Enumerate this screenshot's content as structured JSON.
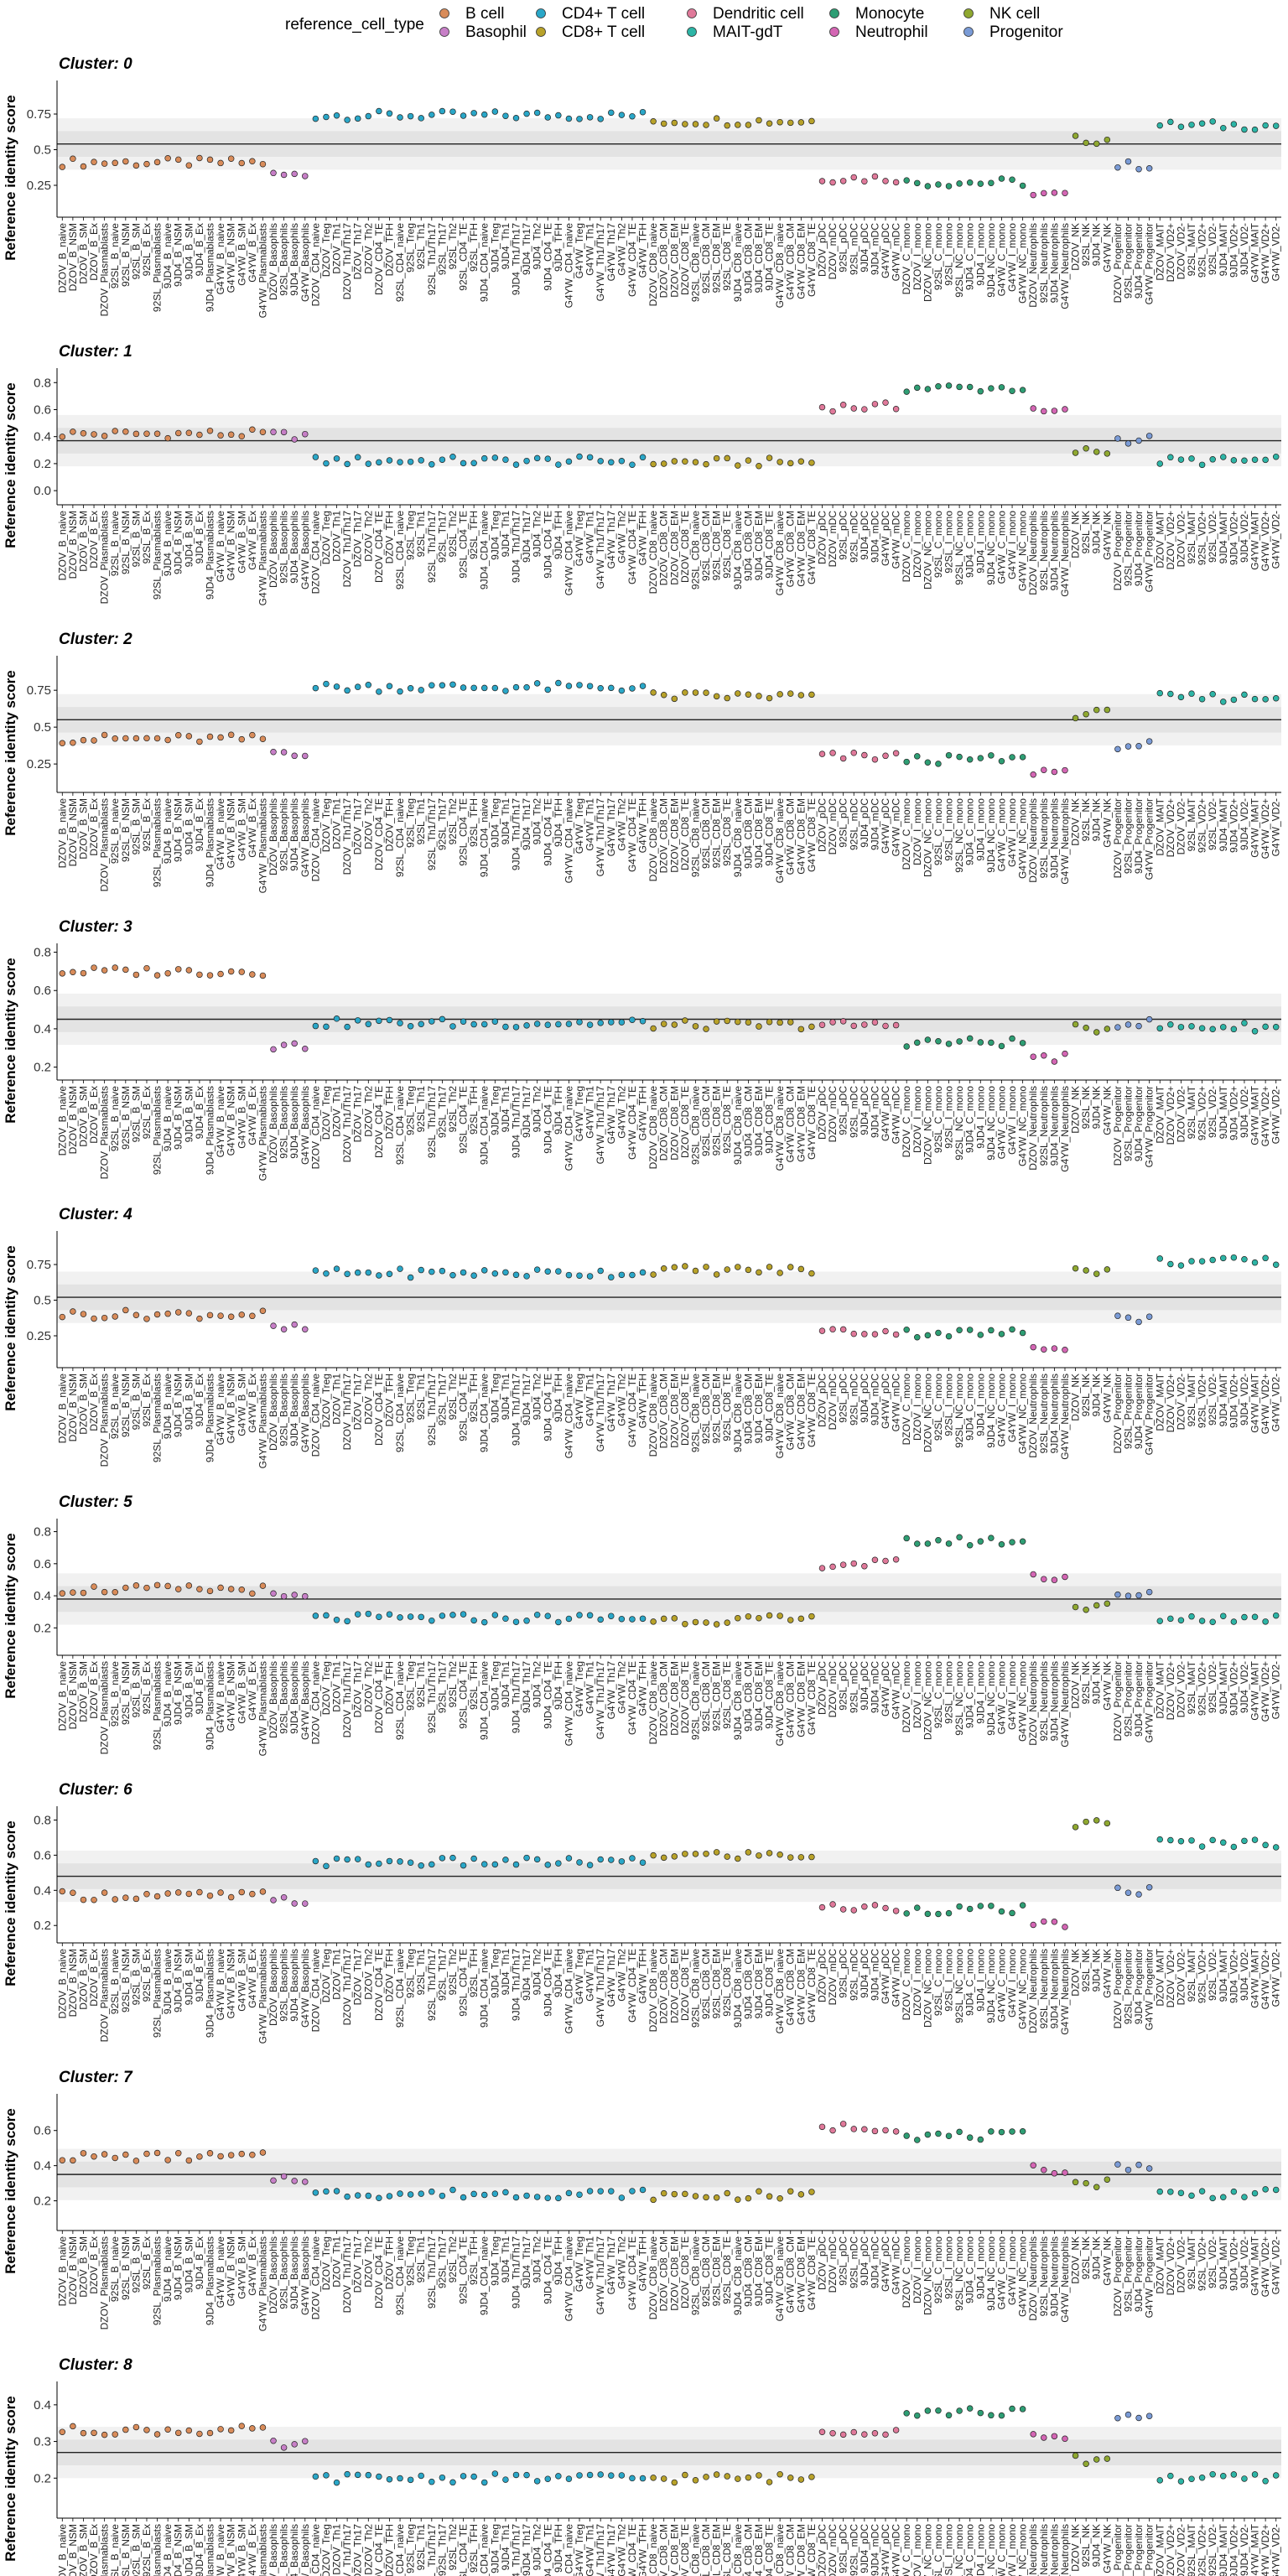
{
  "legend": {
    "title": "reference_cell_type",
    "items": [
      {
        "label": "B cell",
        "color": "#D98C5A"
      },
      {
        "label": "Basophil",
        "color": "#C77FC7"
      },
      {
        "label": "CD4+ T cell",
        "color": "#2AA7C8"
      },
      {
        "label": "CD8+ T cell",
        "color": "#B8A22A"
      },
      {
        "label": "Dendritic cell",
        "color": "#E0799A"
      },
      {
        "label": "MAIT-gdT",
        "color": "#2DB5A6"
      },
      {
        "label": "Monocyte",
        "color": "#2E9E74"
      },
      {
        "label": "Neutrophil",
        "color": "#D466B4"
      },
      {
        "label": "NK cell",
        "color": "#8FA830"
      },
      {
        "label": "Progenitor",
        "color": "#7A9BD6"
      }
    ]
  },
  "chart_data": {
    "type": "scatter",
    "ylabel": "Reference identity score",
    "categories": [
      {
        "label": "DZOV_B_naive",
        "group": "B cell"
      },
      {
        "label": "DZOV_B_NSM",
        "group": "B cell"
      },
      {
        "label": "DZOV_B_SM",
        "group": "B cell"
      },
      {
        "label": "DZOV_B_Ex",
        "group": "B cell"
      },
      {
        "label": "DZOV_Plasmablasts",
        "group": "B cell"
      },
      {
        "label": "92SL_B_naive",
        "group": "B cell"
      },
      {
        "label": "92SL_B_NSM",
        "group": "B cell"
      },
      {
        "label": "92SL_B_SM",
        "group": "B cell"
      },
      {
        "label": "92SL_B_Ex",
        "group": "B cell"
      },
      {
        "label": "92SL_Plasmablasts",
        "group": "B cell"
      },
      {
        "label": "9JD4_B_naive",
        "group": "B cell"
      },
      {
        "label": "9JD4_B_NSM",
        "group": "B cell"
      },
      {
        "label": "9JD4_B_SM",
        "group": "B cell"
      },
      {
        "label": "9JD4_B_Ex",
        "group": "B cell"
      },
      {
        "label": "9JD4_Plasmablasts",
        "group": "B cell"
      },
      {
        "label": "G4YW_B_naive",
        "group": "B cell"
      },
      {
        "label": "G4YW_B_NSM",
        "group": "B cell"
      },
      {
        "label": "G4YW_B_SM",
        "group": "B cell"
      },
      {
        "label": "G4YW_B_Ex",
        "group": "B cell"
      },
      {
        "label": "G4YW_Plasmablasts",
        "group": "B cell"
      },
      {
        "label": "DZOV_Basophils",
        "group": "Basophil"
      },
      {
        "label": "92SL_Basophils",
        "group": "Basophil"
      },
      {
        "label": "9JD4_Basophils",
        "group": "Basophil"
      },
      {
        "label": "G4YW_Basophils",
        "group": "Basophil"
      },
      {
        "label": "DZOV_CD4_naive",
        "group": "CD4+ T cell"
      },
      {
        "label": "DZOV_Treg",
        "group": "CD4+ T cell"
      },
      {
        "label": "DZOV_Th1",
        "group": "CD4+ T cell"
      },
      {
        "label": "DZOV_Th1/Th17",
        "group": "CD4+ T cell"
      },
      {
        "label": "DZOV_Th17",
        "group": "CD4+ T cell"
      },
      {
        "label": "DZOV_Th2",
        "group": "CD4+ T cell"
      },
      {
        "label": "DZOV_CD4_TE",
        "group": "CD4+ T cell"
      },
      {
        "label": "DZOV_TFH",
        "group": "CD4+ T cell"
      },
      {
        "label": "92SL_CD4_naive",
        "group": "CD4+ T cell"
      },
      {
        "label": "92SL_Treg",
        "group": "CD4+ T cell"
      },
      {
        "label": "92SL_Th1",
        "group": "CD4+ T cell"
      },
      {
        "label": "92SL_Th1/Th17",
        "group": "CD4+ T cell"
      },
      {
        "label": "92SL_Th17",
        "group": "CD4+ T cell"
      },
      {
        "label": "92SL_Th2",
        "group": "CD4+ T cell"
      },
      {
        "label": "92SL_CD4_TE",
        "group": "CD4+ T cell"
      },
      {
        "label": "92SL_TFH",
        "group": "CD4+ T cell"
      },
      {
        "label": "9JD4_CD4_naive",
        "group": "CD4+ T cell"
      },
      {
        "label": "9JD4_Treg",
        "group": "CD4+ T cell"
      },
      {
        "label": "9JD4_Th1",
        "group": "CD4+ T cell"
      },
      {
        "label": "9JD4_Th1/Th17",
        "group": "CD4+ T cell"
      },
      {
        "label": "9JD4_Th17",
        "group": "CD4+ T cell"
      },
      {
        "label": "9JD4_Th2",
        "group": "CD4+ T cell"
      },
      {
        "label": "9JD4_CD4_TE",
        "group": "CD4+ T cell"
      },
      {
        "label": "9JD4_TFH",
        "group": "CD4+ T cell"
      },
      {
        "label": "G4YW_CD4_naive",
        "group": "CD4+ T cell"
      },
      {
        "label": "G4YW_Treg",
        "group": "CD4+ T cell"
      },
      {
        "label": "G4YW_Th1",
        "group": "CD4+ T cell"
      },
      {
        "label": "G4YW_Th1/Th17",
        "group": "CD4+ T cell"
      },
      {
        "label": "G4YW_Th17",
        "group": "CD4+ T cell"
      },
      {
        "label": "G4YW_Th2",
        "group": "CD4+ T cell"
      },
      {
        "label": "G4YW_CD4_TE",
        "group": "CD4+ T cell"
      },
      {
        "label": "G4YW_TFH",
        "group": "CD4+ T cell"
      },
      {
        "label": "DZOV_CD8_naive",
        "group": "CD8+ T cell"
      },
      {
        "label": "DZOV_CD8_CM",
        "group": "CD8+ T cell"
      },
      {
        "label": "DZOV_CD8_EM",
        "group": "CD8+ T cell"
      },
      {
        "label": "DZOV_CD8_TE",
        "group": "CD8+ T cell"
      },
      {
        "label": "92SL_CD8_naive",
        "group": "CD8+ T cell"
      },
      {
        "label": "92SL_CD8_CM",
        "group": "CD8+ T cell"
      },
      {
        "label": "92SL_CD8_EM",
        "group": "CD8+ T cell"
      },
      {
        "label": "92SL_CD8_TE",
        "group": "CD8+ T cell"
      },
      {
        "label": "9JD4_CD8_naive",
        "group": "CD8+ T cell"
      },
      {
        "label": "9JD4_CD8_CM",
        "group": "CD8+ T cell"
      },
      {
        "label": "9JD4_CD8_EM",
        "group": "CD8+ T cell"
      },
      {
        "label": "9JD4_CD8_TE",
        "group": "CD8+ T cell"
      },
      {
        "label": "G4YW_CD8_naive",
        "group": "CD8+ T cell"
      },
      {
        "label": "G4YW_CD8_CM",
        "group": "CD8+ T cell"
      },
      {
        "label": "G4YW_CD8_EM",
        "group": "CD8+ T cell"
      },
      {
        "label": "G4YW_CD8_TE",
        "group": "CD8+ T cell"
      },
      {
        "label": "DZOV_pDC",
        "group": "Dendritic cell"
      },
      {
        "label": "DZOV_mDC",
        "group": "Dendritic cell"
      },
      {
        "label": "92SL_pDC",
        "group": "Dendritic cell"
      },
      {
        "label": "92SL_mDC",
        "group": "Dendritic cell"
      },
      {
        "label": "9JD4_pDC",
        "group": "Dendritic cell"
      },
      {
        "label": "9JD4_mDC",
        "group": "Dendritic cell"
      },
      {
        "label": "G4YW_pDC",
        "group": "Dendritic cell"
      },
      {
        "label": "G4YW_mDC",
        "group": "Dendritic cell"
      },
      {
        "label": "DZOV_C_mono",
        "group": "Monocyte"
      },
      {
        "label": "DZOV_I_mono",
        "group": "Monocyte"
      },
      {
        "label": "DZOV_NC_mono",
        "group": "Monocyte"
      },
      {
        "label": "92SL_C_mono",
        "group": "Monocyte"
      },
      {
        "label": "92SL_I_mono",
        "group": "Monocyte"
      },
      {
        "label": "92SL_NC_mono",
        "group": "Monocyte"
      },
      {
        "label": "9JD4_C_mono",
        "group": "Monocyte"
      },
      {
        "label": "9JD4_I_mono",
        "group": "Monocyte"
      },
      {
        "label": "9JD4_NC_mono",
        "group": "Monocyte"
      },
      {
        "label": "G4YW_C_mono",
        "group": "Monocyte"
      },
      {
        "label": "G4YW_I_mono",
        "group": "Monocyte"
      },
      {
        "label": "G4YW_NC_mono",
        "group": "Monocyte"
      },
      {
        "label": "DZOV_Neutrophils",
        "group": "Neutrophil"
      },
      {
        "label": "92SL_Neutrophils",
        "group": "Neutrophil"
      },
      {
        "label": "9JD4_Neutrophils",
        "group": "Neutrophil"
      },
      {
        "label": "G4YW_Neutrophils",
        "group": "Neutrophil"
      },
      {
        "label": "DZOV_NK",
        "group": "NK cell"
      },
      {
        "label": "92SL_NK",
        "group": "NK cell"
      },
      {
        "label": "9JD4_NK",
        "group": "NK cell"
      },
      {
        "label": "G4YW_NK",
        "group": "NK cell"
      },
      {
        "label": "DZOV_Progenitor",
        "group": "Progenitor"
      },
      {
        "label": "92SL_Progenitor",
        "group": "Progenitor"
      },
      {
        "label": "9JD4_Progenitor",
        "group": "Progenitor"
      },
      {
        "label": "G4YW_Progenitor",
        "group": "Progenitor"
      },
      {
        "label": "DZOV_MAIT",
        "group": "MAIT-gdT"
      },
      {
        "label": "DZOV_VD2+",
        "group": "MAIT-gdT"
      },
      {
        "label": "DZOV_VD2-",
        "group": "MAIT-gdT"
      },
      {
        "label": "92SL_MAIT",
        "group": "MAIT-gdT"
      },
      {
        "label": "92SL_VD2+",
        "group": "MAIT-gdT"
      },
      {
        "label": "92SL_VD2-",
        "group": "MAIT-gdT"
      },
      {
        "label": "9JD4_MAIT",
        "group": "MAIT-gdT"
      },
      {
        "label": "9JD4_VD2+",
        "group": "MAIT-gdT"
      },
      {
        "label": "9JD4_VD2-",
        "group": "MAIT-gdT"
      },
      {
        "label": "G4YW_MAIT",
        "group": "MAIT-gdT"
      },
      {
        "label": "G4YW_VD2+",
        "group": "MAIT-gdT"
      },
      {
        "label": "G4YW_VD2-",
        "group": "MAIT-gdT"
      }
    ],
    "panels": [
      {
        "title": "Cluster: 0",
        "yticks": [
          0.25,
          0.5,
          0.75
        ],
        "ylim": [
          0.05,
          0.95
        ],
        "hline": 0.54,
        "base": {
          "B cell": 0.41,
          "Basophil": 0.32,
          "CD4+ T cell": 0.74,
          "CD8+ T cell": 0.7,
          "Dendritic cell": 0.3,
          "Monocyte": 0.27,
          "Neutrophil": 0.18,
          "NK cell": 0.57,
          "Progenitor": 0.39,
          "MAIT-gdT": 0.67
        }
      },
      {
        "title": "Cluster: 1",
        "yticks": [
          0.0,
          0.2,
          0.4,
          0.6,
          0.8
        ],
        "ylim": [
          -0.08,
          0.87
        ],
        "hline": 0.37,
        "base": {
          "B cell": 0.42,
          "Basophil": 0.41,
          "CD4+ T cell": 0.22,
          "CD8+ T cell": 0.21,
          "Dendritic cell": 0.62,
          "Monocyte": 0.76,
          "Neutrophil": 0.58,
          "NK cell": 0.29,
          "Progenitor": 0.38,
          "MAIT-gdT": 0.22
        }
      },
      {
        "title": "Cluster: 2",
        "yticks": [
          0.25,
          0.5,
          0.75
        ],
        "ylim": [
          0.08,
          0.95
        ],
        "hline": 0.55,
        "base": {
          "B cell": 0.42,
          "Basophil": 0.33,
          "CD4+ T cell": 0.77,
          "CD8+ T cell": 0.71,
          "Dendritic cell": 0.3,
          "Monocyte": 0.28,
          "Neutrophil": 0.2,
          "NK cell": 0.59,
          "Progenitor": 0.38,
          "MAIT-gdT": 0.7
        }
      },
      {
        "title": "Cluster: 3",
        "yticks": [
          0.2,
          0.4,
          0.6,
          0.8
        ],
        "ylim": [
          0.15,
          0.82
        ],
        "hline": 0.45,
        "base": {
          "B cell": 0.7,
          "Basophil": 0.31,
          "CD4+ T cell": 0.43,
          "CD8+ T cell": 0.42,
          "Dendritic cell": 0.42,
          "Monocyte": 0.33,
          "Neutrophil": 0.25,
          "NK cell": 0.4,
          "Progenitor": 0.43,
          "MAIT-gdT": 0.41
        }
      },
      {
        "title": "Cluster: 4",
        "yticks": [
          0.25,
          0.5,
          0.75
        ],
        "ylim": [
          0.05,
          0.95
        ],
        "hline": 0.52,
        "base": {
          "B cell": 0.4,
          "Basophil": 0.3,
          "CD4+ T cell": 0.69,
          "CD8+ T cell": 0.71,
          "Dendritic cell": 0.28,
          "Monocyte": 0.27,
          "Neutrophil": 0.18,
          "NK cell": 0.71,
          "Progenitor": 0.37,
          "MAIT-gdT": 0.77
        }
      },
      {
        "title": "Cluster: 5",
        "yticks": [
          0.2,
          0.4,
          0.6,
          0.8
        ],
        "ylim": [
          0.05,
          0.85
        ],
        "hline": 0.38,
        "base": {
          "B cell": 0.44,
          "Basophil": 0.39,
          "CD4+ T cell": 0.26,
          "CD8+ T cell": 0.25,
          "Dendritic cell": 0.6,
          "Monocyte": 0.74,
          "Neutrophil": 0.52,
          "NK cell": 0.33,
          "Progenitor": 0.4,
          "MAIT-gdT": 0.26
        }
      },
      {
        "title": "Cluster: 6",
        "yticks": [
          0.2,
          0.4,
          0.6,
          0.8
        ],
        "ylim": [
          0.12,
          0.85
        ],
        "hline": 0.48,
        "base": {
          "B cell": 0.37,
          "Basophil": 0.34,
          "CD4+ T cell": 0.56,
          "CD8+ T cell": 0.6,
          "Dendritic cell": 0.3,
          "Monocyte": 0.29,
          "Neutrophil": 0.2,
          "NK cell": 0.78,
          "Progenitor": 0.4,
          "MAIT-gdT": 0.67
        }
      },
      {
        "title": "Cluster: 7",
        "yticks": [
          0.2,
          0.4,
          0.6
        ],
        "ylim": [
          0.05,
          0.78
        ],
        "hline": 0.35,
        "base": {
          "B cell": 0.45,
          "Basophil": 0.33,
          "CD4+ T cell": 0.24,
          "CD8+ T cell": 0.23,
          "Dendritic cell": 0.62,
          "Monocyte": 0.57,
          "Neutrophil": 0.38,
          "NK cell": 0.3,
          "Progenitor": 0.4,
          "MAIT-gdT": 0.24
        }
      },
      {
        "title": "Cluster: 8",
        "yticks": [
          0.2,
          0.3,
          0.4
        ],
        "ylim": [
          0.1,
          0.45
        ],
        "hline": 0.27,
        "base": {
          "B cell": 0.33,
          "Basophil": 0.29,
          "CD4+ T cell": 0.2,
          "CD8+ T cell": 0.2,
          "Dendritic cell": 0.33,
          "Monocyte": 0.38,
          "Neutrophil": 0.31,
          "NK cell": 0.25,
          "Progenitor": 0.37,
          "MAIT-gdT": 0.2
        }
      }
    ]
  }
}
